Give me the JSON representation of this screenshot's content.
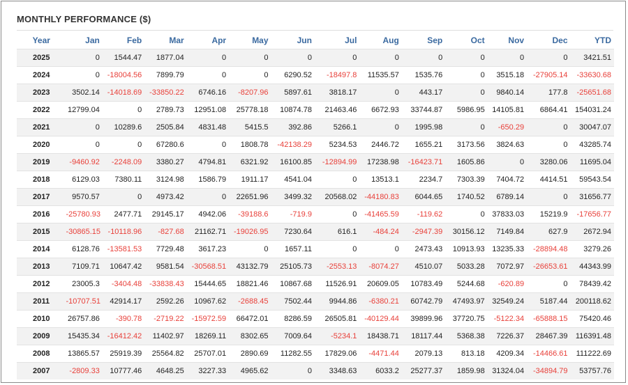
{
  "title": "MONTHLY PERFORMANCE ($)",
  "colors": {
    "negative": "#e8403a",
    "header": "#3b6aa0",
    "text": "#222222"
  },
  "columns": [
    "Year",
    "Jan",
    "Feb",
    "Mar",
    "Apr",
    "May",
    "Jun",
    "Jul",
    "Aug",
    "Sep",
    "Oct",
    "Nov",
    "Dec",
    "YTD"
  ],
  "rows": [
    [
      "2025",
      "0",
      "1544.47",
      "1877.04",
      "0",
      "0",
      "0",
      "0",
      "0",
      "0",
      "0",
      "0",
      "0",
      "3421.51"
    ],
    [
      "2024",
      "0",
      "-18004.56",
      "7899.79",
      "0",
      "0",
      "6290.52",
      "-18497.8",
      "11535.57",
      "1535.76",
      "0",
      "3515.18",
      "-27905.14",
      "-33630.68"
    ],
    [
      "2023",
      "3502.14",
      "-14018.69",
      "-33850.22",
      "6746.16",
      "-8207.96",
      "5897.61",
      "3818.17",
      "0",
      "443.17",
      "0",
      "9840.14",
      "177.8",
      "-25651.68"
    ],
    [
      "2022",
      "12799.04",
      "0",
      "2789.73",
      "12951.08",
      "25778.18",
      "10874.78",
      "21463.46",
      "6672.93",
      "33744.87",
      "5986.95",
      "14105.81",
      "6864.41",
      "154031.24"
    ],
    [
      "2021",
      "0",
      "10289.6",
      "2505.84",
      "4831.48",
      "5415.5",
      "392.86",
      "5266.1",
      "0",
      "1995.98",
      "0",
      "-650.29",
      "0",
      "30047.07"
    ],
    [
      "2020",
      "0",
      "0",
      "67280.6",
      "0",
      "1808.78",
      "-42138.29",
      "5234.53",
      "2446.72",
      "1655.21",
      "3173.56",
      "3824.63",
      "0",
      "43285.74"
    ],
    [
      "2019",
      "-9460.92",
      "-2248.09",
      "3380.27",
      "4794.81",
      "6321.92",
      "16100.85",
      "-12894.99",
      "17238.98",
      "-16423.71",
      "1605.86",
      "0",
      "3280.06",
      "11695.04"
    ],
    [
      "2018",
      "6129.03",
      "7380.11",
      "3124.98",
      "1586.79",
      "1911.17",
      "4541.04",
      "0",
      "13513.1",
      "2234.7",
      "7303.39",
      "7404.72",
      "4414.51",
      "59543.54"
    ],
    [
      "2017",
      "9570.57",
      "0",
      "4973.42",
      "0",
      "22651.96",
      "3499.32",
      "20568.02",
      "-44180.83",
      "6044.65",
      "1740.52",
      "6789.14",
      "0",
      "31656.77"
    ],
    [
      "2016",
      "-25780.93",
      "2477.71",
      "29145.17",
      "4942.06",
      "-39188.6",
      "-719.9",
      "0",
      "-41465.59",
      "-119.62",
      "0",
      "37833.03",
      "15219.9",
      "-17656.77"
    ],
    [
      "2015",
      "-30865.15",
      "-10118.96",
      "-827.68",
      "21162.71",
      "-19026.95",
      "7230.64",
      "616.1",
      "-484.24",
      "-2947.39",
      "30156.12",
      "7149.84",
      "627.9",
      "2672.94"
    ],
    [
      "2014",
      "6128.76",
      "-13581.53",
      "7729.48",
      "3617.23",
      "0",
      "1657.11",
      "0",
      "0",
      "2473.43",
      "10913.93",
      "13235.33",
      "-28894.48",
      "3279.26"
    ],
    [
      "2013",
      "7109.71",
      "10647.42",
      "9581.54",
      "-30568.51",
      "43132.79",
      "25105.73",
      "-2553.13",
      "-8074.27",
      "4510.07",
      "5033.28",
      "7072.97",
      "-26653.61",
      "44343.99"
    ],
    [
      "2012",
      "23005.3",
      "-3404.48",
      "-33838.43",
      "15444.65",
      "18821.46",
      "10867.68",
      "11526.91",
      "20609.05",
      "10783.49",
      "5244.68",
      "-620.89",
      "0",
      "78439.42"
    ],
    [
      "2011",
      "-10707.51",
      "42914.17",
      "2592.26",
      "10967.62",
      "-2688.45",
      "7502.44",
      "9944.86",
      "-6380.21",
      "60742.79",
      "47493.97",
      "32549.24",
      "5187.44",
      "200118.62"
    ],
    [
      "2010",
      "26757.86",
      "-390.78",
      "-2719.22",
      "-15972.59",
      "66472.01",
      "8286.59",
      "26505.81",
      "-40129.44",
      "39899.96",
      "37720.75",
      "-5122.34",
      "-65888.15",
      "75420.46"
    ],
    [
      "2009",
      "15435.34",
      "-16412.42",
      "11402.97",
      "18269.11",
      "8302.65",
      "7009.64",
      "-5234.1",
      "18438.71",
      "18117.44",
      "5368.38",
      "7226.37",
      "28467.39",
      "116391.48"
    ],
    [
      "2008",
      "13865.57",
      "25919.39",
      "25564.82",
      "25707.01",
      "2890.69",
      "11282.55",
      "17829.06",
      "-4471.44",
      "2079.13",
      "813.18",
      "4209.34",
      "-14466.61",
      "111222.69"
    ],
    [
      "2007",
      "-2809.33",
      "10777.46",
      "4648.25",
      "3227.33",
      "4965.62",
      "0",
      "3348.63",
      "6033.2",
      "25277.37",
      "1859.98",
      "31324.04",
      "-34894.79",
      "53757.76"
    ]
  ]
}
